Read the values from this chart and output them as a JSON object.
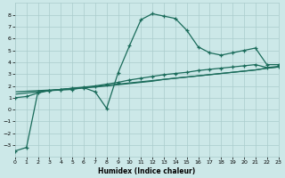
{
  "bg_color": "#cce8e8",
  "grid_color": "#aacccc",
  "line_color": "#1a6b5a",
  "xlabel": "Humidex (Indice chaleur)",
  "xlim": [
    0,
    23
  ],
  "ylim": [
    -4,
    9
  ],
  "xticks": [
    0,
    1,
    2,
    3,
    4,
    5,
    6,
    7,
    8,
    9,
    10,
    11,
    12,
    13,
    14,
    15,
    16,
    17,
    18,
    19,
    20,
    21,
    22,
    23
  ],
  "yticks": [
    -3,
    -2,
    -1,
    0,
    1,
    2,
    3,
    4,
    5,
    6,
    7,
    8
  ],
  "line1_x": [
    0,
    1,
    2,
    3,
    4,
    5,
    6,
    7,
    8,
    9,
    10,
    11,
    12,
    13,
    14,
    15,
    16,
    17,
    18,
    19,
    20,
    21,
    22,
    23
  ],
  "line1_y": [
    -3.5,
    -3.2,
    1.5,
    1.6,
    1.65,
    1.7,
    1.85,
    1.5,
    0.1,
    3.1,
    5.4,
    7.6,
    8.1,
    7.9,
    7.7,
    6.7,
    5.3,
    4.8,
    4.6,
    4.8,
    5.0,
    5.2,
    3.8,
    3.8
  ],
  "line2_x": [
    0,
    1,
    2,
    3,
    4,
    5,
    6,
    7,
    8,
    9,
    10,
    11,
    12,
    13,
    14,
    15,
    16,
    17,
    18,
    19,
    20,
    21,
    22,
    23
  ],
  "line2_y": [
    1.0,
    1.1,
    1.4,
    1.6,
    1.7,
    1.8,
    1.9,
    2.0,
    2.15,
    2.3,
    2.5,
    2.65,
    2.8,
    2.95,
    3.05,
    3.15,
    3.3,
    3.4,
    3.5,
    3.6,
    3.7,
    3.8,
    3.55,
    3.65
  ],
  "line3_x": [
    0,
    1,
    2,
    3,
    4,
    5,
    6,
    7,
    8,
    9,
    10,
    11,
    12,
    13,
    14,
    15,
    16,
    17,
    18,
    19,
    20,
    21,
    22,
    23
  ],
  "line3_y": [
    1.3,
    1.4,
    1.5,
    1.6,
    1.7,
    1.8,
    1.85,
    1.9,
    2.0,
    2.1,
    2.2,
    2.3,
    2.4,
    2.55,
    2.65,
    2.75,
    2.85,
    2.95,
    3.05,
    3.15,
    3.25,
    3.35,
    3.5,
    3.6
  ],
  "line4_x": [
    0,
    1,
    2,
    3,
    4,
    5,
    6,
    7,
    8,
    9,
    10,
    11,
    12,
    13,
    14,
    15,
    16,
    17,
    18,
    19,
    20,
    21,
    22,
    23
  ],
  "line4_y": [
    1.5,
    1.55,
    1.6,
    1.65,
    1.7,
    1.75,
    1.85,
    1.95,
    2.05,
    2.15,
    2.25,
    2.35,
    2.45,
    2.55,
    2.65,
    2.75,
    2.85,
    2.95,
    3.05,
    3.15,
    3.25,
    3.35,
    3.5,
    3.6
  ]
}
